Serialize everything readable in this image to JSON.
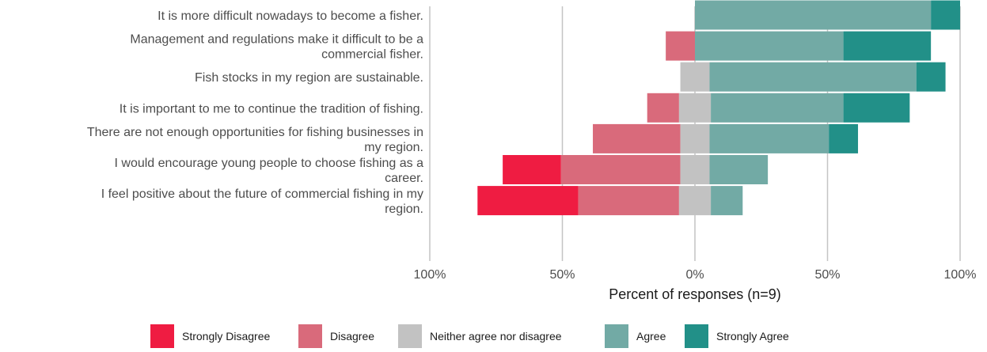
{
  "chart_data": {
    "type": "bar",
    "orientation": "horizontal-diverging",
    "xlabel": "Percent of responses (n=9)",
    "x_ticks": [
      "100%",
      "50%",
      "0%",
      "50%",
      "100%"
    ],
    "xlim": [
      -100,
      100
    ],
    "grid": true,
    "legend_position": "bottom",
    "categories": [
      [
        "It is more difficult nowadays to become a fisher."
      ],
      [
        "Management and regulations make it difficult to be a",
        "commercial fisher."
      ],
      [
        "Fish stocks in my region are sustainable."
      ],
      [
        "It is important to me to continue the tradition of fishing."
      ],
      [
        "There are not enough opportunities for fishing businesses in",
        "my region."
      ],
      [
        "I would encourage young people to choose fishing as a",
        "career."
      ],
      [
        "I feel positive about the future of commercial fishing in my",
        "region."
      ]
    ],
    "series": [
      {
        "name": "Strongly Disagree",
        "color": "#ef1c42",
        "values": [
          0,
          0,
          0,
          0,
          0,
          22,
          38
        ]
      },
      {
        "name": "Disagree",
        "color": "#d96a7b",
        "values": [
          0,
          11,
          0,
          12,
          33,
          45,
          38
        ]
      },
      {
        "name": "Neither agree nor disagree",
        "color": "#c2c2c2",
        "values": [
          0,
          0,
          11,
          12,
          11,
          11,
          12
        ]
      },
      {
        "name": "Agree",
        "color": "#72aaa5",
        "values": [
          89,
          56,
          78,
          50,
          45,
          22,
          12
        ]
      },
      {
        "name": "Strongly Agree",
        "color": "#229088",
        "values": [
          11,
          33,
          11,
          25,
          11,
          0,
          0
        ]
      }
    ]
  }
}
